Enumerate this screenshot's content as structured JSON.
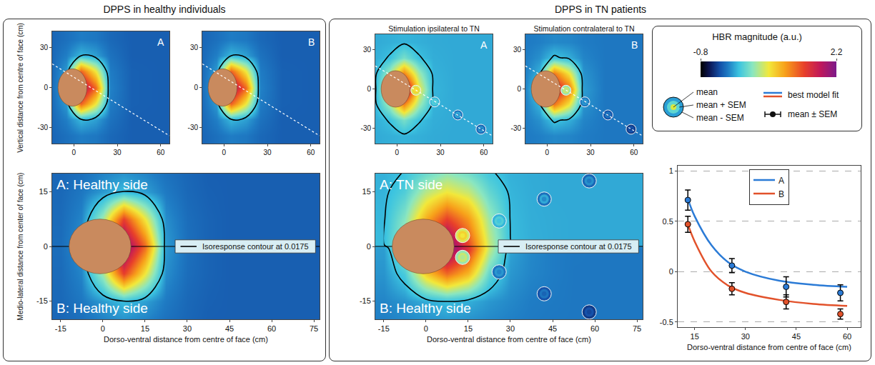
{
  "titles": {
    "left": "DPPS in healthy individuals",
    "right": "DPPS in TN patients"
  },
  "legend_box": {
    "colorbar": {
      "title": "HBR magnitude (a.u.)",
      "range": [
        -0.8,
        2.2
      ],
      "ticks": [
        -0.8,
        2.2
      ]
    },
    "ring_labels": [
      "mean",
      "mean + SEM",
      "mean - SEM"
    ],
    "fit_label": "best model fit",
    "point_label": "mean ± SEM"
  },
  "chart_data": [
    {
      "type": "heatmap",
      "letter": "A",
      "ylabel": "Vertical distance from centre of face (cm)",
      "x": [
        -15,
        -5,
        5,
        15,
        25,
        40,
        60,
        75
      ],
      "y": [
        -36,
        -24,
        -12,
        0,
        12,
        24,
        36
      ],
      "z": [
        [
          -0.29,
          -0.25,
          -0.2,
          -0.22,
          -0.28,
          -0.32,
          -0.32,
          -0.32
        ],
        [
          -0.28,
          -0.19,
          0.0,
          -0.08,
          -0.24,
          -0.32,
          -0.32,
          -0.32
        ],
        [
          -0.27,
          -0.1,
          1.35,
          0.7,
          -0.2,
          -0.31,
          -0.32,
          -0.32
        ],
        [
          -0.26,
          -0.05,
          2.0,
          1.3,
          -0.18,
          -0.31,
          -0.32,
          -0.32
        ],
        [
          -0.27,
          -0.1,
          1.35,
          0.7,
          -0.2,
          -0.31,
          -0.32,
          -0.32
        ],
        [
          -0.28,
          -0.19,
          0.0,
          -0.08,
          -0.24,
          -0.32,
          -0.32,
          -0.32
        ],
        [
          -0.29,
          -0.25,
          -0.2,
          -0.22,
          -0.28,
          -0.32,
          -0.32,
          -0.32
        ]
      ],
      "contour_level": 0.0175,
      "xlim": [
        -15,
        66
      ],
      "ylim": [
        -42,
        42
      ],
      "xticks": [
        0,
        30,
        60
      ],
      "yticks": [
        -30,
        0,
        30
      ]
    },
    {
      "type": "heatmap",
      "letter": "B",
      "x": [
        -15,
        -5,
        5,
        15,
        25,
        40,
        60,
        75
      ],
      "y": [
        -36,
        -24,
        -12,
        0,
        12,
        24,
        36
      ],
      "z": [
        [
          -0.29,
          -0.25,
          -0.2,
          -0.22,
          -0.28,
          -0.32,
          -0.32,
          -0.32
        ],
        [
          -0.28,
          -0.19,
          0.0,
          -0.08,
          -0.24,
          -0.32,
          -0.32,
          -0.32
        ],
        [
          -0.27,
          -0.1,
          1.35,
          0.7,
          -0.2,
          -0.31,
          -0.32,
          -0.32
        ],
        [
          -0.26,
          -0.05,
          2.0,
          1.3,
          -0.18,
          -0.31,
          -0.32,
          -0.32
        ],
        [
          -0.27,
          -0.1,
          1.35,
          0.7,
          -0.2,
          -0.31,
          -0.32,
          -0.32
        ],
        [
          -0.28,
          -0.19,
          0.0,
          -0.08,
          -0.24,
          -0.32,
          -0.32,
          -0.32
        ],
        [
          -0.29,
          -0.25,
          -0.2,
          -0.22,
          -0.28,
          -0.32,
          -0.32,
          -0.32
        ]
      ],
      "contour_level": 0.0175,
      "xlim": [
        -15,
        66
      ],
      "ylim": [
        -42,
        42
      ],
      "xticks": [
        0,
        30,
        60
      ],
      "yticks": [
        -30,
        0,
        30
      ]
    },
    {
      "type": "heatmap",
      "labels": [
        "A: Healthy side",
        "B: Healthy side"
      ],
      "contour_label": "Isoresponse contour at 0.0175",
      "xlabel": "Dorso-ventral distance from centre of face (cm)",
      "ylabel": "Medio-lateral distance from center of face (cm)",
      "x": [
        -15,
        -7.5,
        0,
        7.5,
        15,
        22.5,
        30,
        37.5,
        45,
        52.5,
        60,
        67.5,
        75
      ],
      "y": [
        -22.5,
        -15,
        -7.5,
        0,
        7.5,
        15,
        22.5
      ],
      "z": [
        [
          -0.29,
          -0.27,
          -0.22,
          -0.2,
          -0.22,
          -0.26,
          -0.29,
          -0.32,
          -0.32,
          -0.32,
          -0.32,
          -0.32,
          -0.32
        ],
        [
          -0.28,
          -0.22,
          -0.1,
          0.02,
          -0.08,
          -0.21,
          -0.28,
          -0.31,
          -0.32,
          -0.32,
          -0.32,
          -0.32,
          -0.32
        ],
        [
          -0.27,
          -0.17,
          0.43,
          1.5,
          0.7,
          -0.14,
          -0.26,
          -0.3,
          -0.32,
          -0.32,
          -0.32,
          -0.32,
          -0.32
        ],
        [
          -0.26,
          -0.13,
          1.0,
          2.2,
          1.3,
          -0.1,
          -0.25,
          -0.3,
          -0.32,
          -0.32,
          -0.32,
          -0.32,
          -0.32
        ],
        [
          -0.27,
          -0.17,
          0.43,
          1.5,
          0.7,
          -0.14,
          -0.26,
          -0.3,
          -0.32,
          -0.32,
          -0.32,
          -0.32,
          -0.32
        ],
        [
          -0.28,
          -0.22,
          -0.1,
          0.02,
          -0.08,
          -0.21,
          -0.28,
          -0.31,
          -0.32,
          -0.32,
          -0.32,
          -0.32,
          -0.32
        ],
        [
          -0.29,
          -0.27,
          -0.22,
          -0.2,
          -0.22,
          -0.26,
          -0.29,
          -0.32,
          -0.32,
          -0.32,
          -0.32,
          -0.32,
          -0.32
        ]
      ],
      "contour_level": 0.0175,
      "xlim": [
        -18,
        77
      ],
      "ylim": [
        -20,
        20
      ],
      "xticks": [
        -15,
        0,
        15,
        30,
        45,
        60,
        75
      ],
      "yticks": [
        -15,
        0,
        15
      ]
    },
    {
      "type": "heatmap",
      "title": "Stimulation ipsilateral to TN",
      "letter": "A",
      "x": [
        -15,
        -5,
        5,
        15,
        25,
        40,
        60,
        75
      ],
      "y": [
        -36,
        -24,
        -12,
        0,
        12,
        24,
        36
      ],
      "z": [
        [
          -0.045,
          -0.03,
          -0.015,
          -0.03,
          -0.045,
          -0.05,
          -0.05,
          -0.05
        ],
        [
          -0.035,
          0.03,
          0.27,
          0.03,
          -0.035,
          -0.05,
          -0.05,
          -0.05
        ],
        [
          -0.02,
          0.42,
          1.2,
          0.42,
          -0.02,
          -0.05,
          -0.05,
          -0.05
        ],
        [
          -0.01,
          0.7,
          2.2,
          0.7,
          -0.01,
          -0.05,
          -0.05,
          -0.05
        ],
        [
          -0.02,
          0.42,
          1.2,
          0.42,
          -0.02,
          -0.05,
          -0.05,
          -0.05
        ],
        [
          -0.035,
          0.03,
          0.27,
          0.03,
          -0.035,
          -0.05,
          -0.05,
          -0.05
        ],
        [
          -0.045,
          -0.03,
          -0.015,
          -0.03,
          -0.045,
          -0.05,
          -0.05,
          -0.05
        ]
      ],
      "contour_level": 0.0175,
      "xlim": [
        -15,
        66
      ],
      "ylim": [
        -42,
        42
      ],
      "xticks": [
        0,
        30,
        60
      ],
      "yticks": [
        -30,
        0,
        30
      ],
      "stimuli": [
        {
          "x": [
            13,
            26,
            42,
            58
          ],
          "y": [
            -1,
            -10,
            -20,
            -31
          ],
          "values": [
            0.71,
            0.06,
            -0.15,
            -0.21
          ],
          "sem": [
            0.1,
            0.07,
            0.1,
            0.08
          ]
        }
      ]
    },
    {
      "type": "heatmap",
      "title": "Stimulation contralateral to TN",
      "letter": "B",
      "x": [
        -15,
        -5,
        5,
        15,
        25,
        40,
        60,
        75
      ],
      "y": [
        -36,
        -24,
        -12,
        0,
        12,
        24,
        36
      ],
      "z": [
        [
          -0.21,
          -0.19,
          -0.16,
          -0.17,
          -0.2,
          -0.22,
          -0.22,
          -0.22
        ],
        [
          -0.2,
          -0.13,
          0.05,
          -0.03,
          -0.17,
          -0.22,
          -0.22,
          -0.22
        ],
        [
          -0.19,
          -0.01,
          1.25,
          0.72,
          -0.12,
          -0.22,
          -0.22,
          -0.22
        ],
        [
          -0.18,
          0.15,
          1.8,
          1.3,
          -0.09,
          -0.22,
          -0.22,
          -0.22
        ],
        [
          -0.19,
          -0.01,
          1.25,
          0.72,
          -0.12,
          -0.22,
          -0.22,
          -0.22
        ],
        [
          -0.2,
          -0.13,
          0.05,
          -0.03,
          -0.17,
          -0.22,
          -0.22,
          -0.22
        ],
        [
          -0.21,
          -0.19,
          -0.16,
          -0.17,
          -0.2,
          -0.22,
          -0.22,
          -0.22
        ]
      ],
      "contour_level": 0.0175,
      "xlim": [
        -15,
        66
      ],
      "ylim": [
        -42,
        42
      ],
      "xticks": [
        0,
        30,
        60
      ],
      "yticks": [
        -30,
        0,
        30
      ],
      "stimuli": [
        {
          "x": [
            13,
            26,
            42,
            58
          ],
          "y": [
            -1,
            -10,
            -20,
            -31
          ],
          "values": [
            0.47,
            -0.17,
            -0.3,
            -0.42
          ],
          "sem": [
            0.08,
            0.06,
            0.07,
            0.05
          ]
        }
      ]
    },
    {
      "type": "heatmap",
      "labels": [
        "A: TN side",
        "B: Healthy side"
      ],
      "contour_label": "Isoresponse contour at 0.0175",
      "xlabel": "Dorso-ventral distance from centre of face (cm)",
      "x": [
        -15,
        -7.5,
        0,
        7.5,
        15,
        22.5,
        30,
        37.5,
        45,
        52.5,
        60,
        67.5,
        75
      ],
      "y": [
        -22.5,
        -15,
        -7.5,
        -0.5,
        0.5,
        7.5,
        15,
        22.5
      ],
      "z": [
        [
          -0.2,
          -0.18,
          -0.17,
          -0.16,
          -0.17,
          -0.18,
          -0.2,
          -0.21,
          -0.22,
          -0.22,
          -0.22,
          -0.22,
          -0.22
        ],
        [
          -0.17,
          -0.12,
          -0.04,
          0.02,
          -0.03,
          -0.11,
          -0.16,
          -0.2,
          -0.21,
          -0.22,
          -0.22,
          -0.22,
          -0.22
        ],
        [
          -0.12,
          0.1,
          0.85,
          1.3,
          0.95,
          0.2,
          -0.11,
          -0.17,
          -0.2,
          -0.22,
          -0.22,
          -0.22,
          -0.22
        ],
        [
          -0.09,
          0.38,
          1.5,
          2.2,
          1.6,
          0.55,
          -0.07,
          -0.16,
          -0.2,
          -0.215,
          -0.22,
          -0.22,
          -0.22
        ],
        [
          0.01,
          0.45,
          1.3,
          2.2,
          1.45,
          0.55,
          0.02,
          -0.03,
          -0.045,
          -0.05,
          -0.05,
          -0.05,
          -0.05
        ],
        [
          0.0,
          0.33,
          1.0,
          1.5,
          1.1,
          0.42,
          0.01,
          -0.035,
          -0.045,
          -0.05,
          -0.05,
          -0.05,
          -0.05
        ],
        [
          -0.015,
          0.12,
          0.5,
          0.7,
          0.55,
          0.2,
          -0.01,
          -0.04,
          -0.05,
          -0.05,
          -0.05,
          -0.05,
          -0.05
        ],
        [
          -0.03,
          -0.005,
          0.08,
          0.2,
          0.1,
          0.0,
          -0.03,
          -0.045,
          -0.05,
          -0.05,
          -0.05,
          -0.05,
          -0.05
        ]
      ],
      "contour_level": 0.0175,
      "xlim": [
        -18,
        77
      ],
      "ylim": [
        -20,
        20
      ],
      "xticks": [
        -15,
        0,
        15,
        30,
        45,
        60,
        75
      ],
      "yticks": [
        -15,
        0,
        15
      ],
      "stimuli": [
        {
          "x": [
            13,
            26,
            42,
            58
          ],
          "y": [
            3,
            7,
            13,
            18
          ],
          "values": [
            0.71,
            0.06,
            -0.15,
            -0.21
          ],
          "sem": [
            0.1,
            0.07,
            0.1,
            0.08
          ]
        },
        {
          "x": [
            13,
            26,
            42,
            58
          ],
          "y": [
            -3,
            -7,
            -13,
            -18
          ],
          "values": [
            0.47,
            -0.17,
            -0.3,
            -0.42
          ],
          "sem": [
            0.08,
            0.06,
            0.07,
            0.05
          ]
        }
      ]
    },
    {
      "type": "line",
      "xlabel": "Dorso-ventral distance from centre of face (cm)",
      "x": [
        13,
        26,
        42,
        58
      ],
      "xlim": [
        10,
        64
      ],
      "xticks": [
        15,
        30,
        45,
        60
      ],
      "ylim": [
        -0.55,
        1.05
      ],
      "yticks": [
        -0.5,
        0,
        0.5,
        1
      ],
      "grid": true,
      "legend": "top",
      "series": [
        {
          "name": "A",
          "color": "#2b7bd6",
          "values": [
            0.71,
            0.06,
            -0.15,
            -0.21
          ],
          "sem": [
            0.1,
            0.07,
            0.1,
            0.08
          ],
          "fit_x": [
            13,
            15,
            20,
            25,
            30,
            40,
            50,
            60
          ],
          "fit": [
            0.72,
            0.55,
            0.26,
            0.09,
            0.0,
            -0.09,
            -0.13,
            -0.15
          ]
        },
        {
          "name": "B",
          "color": "#e2522b",
          "values": [
            0.47,
            -0.17,
            -0.3,
            -0.42
          ],
          "sem": [
            0.08,
            0.06,
            0.07,
            0.05
          ],
          "fit_x": [
            13,
            15,
            20,
            25,
            30,
            40,
            50,
            60
          ],
          "fit": [
            0.47,
            0.3,
            0.0,
            -0.14,
            -0.21,
            -0.28,
            -0.32,
            -0.34
          ]
        }
      ]
    }
  ]
}
